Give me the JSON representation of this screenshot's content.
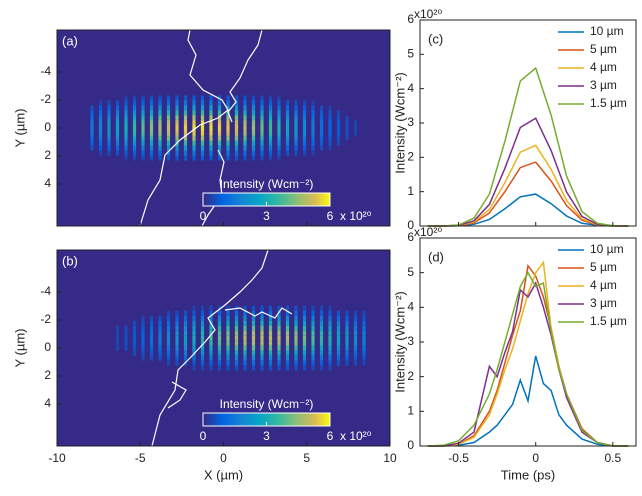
{
  "chart_data": [
    {
      "type": "heatmap",
      "panel_label": "(a)",
      "ylabel": "Y (µm)",
      "xlim": [
        -10,
        10
      ],
      "xticks": [
        -10,
        -5,
        0,
        5,
        10
      ],
      "show_xtick_labels": false,
      "ylim": [
        -7,
        7
      ],
      "y_reversed": true,
      "yticks": [
        -4,
        -2,
        0,
        2,
        4
      ],
      "colorbar": {
        "label": "Intensity (Wcm⁻²)",
        "lim": [
          0,
          6
        ],
        "ticks": [
          0,
          3,
          6
        ],
        "multiplier": "x 10²⁰"
      }
    },
    {
      "type": "heatmap",
      "panel_label": "(b)",
      "xlabel": "X (µm)",
      "ylabel": "Y (µm)",
      "xlim": [
        -10,
        10
      ],
      "xticks": [
        -10,
        -5,
        0,
        5,
        10
      ],
      "ylim": [
        -7,
        7
      ],
      "y_reversed": true,
      "yticks": [
        -4,
        -2,
        0,
        2,
        4
      ],
      "colorbar": {
        "label": "Intensity (Wcm⁻²)",
        "lim": [
          0,
          6
        ],
        "ticks": [
          0,
          3,
          6
        ],
        "multiplier": "x 10²⁰"
      }
    },
    {
      "type": "line",
      "panel_label": "(c)",
      "ylabel": "Intensity (Wcm⁻²)",
      "multiplier": "x10²⁰",
      "xlim": [
        -0.75,
        0.65
      ],
      "xticks": [
        -0.5,
        0,
        0.5
      ],
      "show_xtick_labels": false,
      "ylim": [
        0,
        6
      ],
      "yticks": [
        0,
        1,
        2,
        3,
        4,
        5,
        6
      ],
      "legend": "upper right",
      "x": [
        -0.7,
        -0.6,
        -0.5,
        -0.4,
        -0.3,
        -0.2,
        -0.1,
        0,
        0.1,
        0.2,
        0.3,
        0.4,
        0.5,
        0.6
      ],
      "series": [
        {
          "name": "10 µm",
          "color": "#0072bd",
          "values": [
            0,
            0,
            0.01,
            0.05,
            0.19,
            0.5,
            0.85,
            0.93,
            0.65,
            0.29,
            0.08,
            0.02,
            0,
            0
          ]
        },
        {
          "name": "5 µm",
          "color": "#d95319",
          "values": [
            0,
            0,
            0.01,
            0.09,
            0.38,
            1.0,
            1.7,
            1.86,
            1.31,
            0.59,
            0.17,
            0.03,
            0,
            0
          ]
        },
        {
          "name": "4 µm",
          "color": "#edb120",
          "values": [
            0,
            0,
            0.02,
            0.12,
            0.48,
            1.26,
            2.15,
            2.35,
            1.65,
            0.74,
            0.21,
            0.04,
            0,
            0
          ]
        },
        {
          "name": "3 µm",
          "color": "#7e2f8e",
          "values": [
            0,
            0,
            0.02,
            0.15,
            0.63,
            1.68,
            2.87,
            3.14,
            2.2,
            0.99,
            0.28,
            0.05,
            0.01,
            0
          ]
        },
        {
          "name": "1.5 µm",
          "color": "#77ac30",
          "values": [
            0,
            0,
            0.03,
            0.23,
            0.93,
            2.47,
            4.22,
            4.6,
            3.23,
            1.45,
            0.42,
            0.08,
            0.01,
            0
          ]
        }
      ]
    },
    {
      "type": "line",
      "panel_label": "(d)",
      "xlabel": "Time (ps)",
      "ylabel": "Intensity (Wcm⁻²)",
      "multiplier": "x10²⁰",
      "xlim": [
        -0.75,
        0.65
      ],
      "xticks": [
        -0.5,
        0,
        0.5
      ],
      "ylim": [
        0,
        6
      ],
      "yticks": [
        0,
        1,
        2,
        3,
        4,
        5,
        6
      ],
      "legend": "upper right",
      "x": [
        -0.7,
        -0.6,
        -0.5,
        -0.4,
        -0.3,
        -0.25,
        -0.2,
        -0.15,
        -0.1,
        -0.05,
        0,
        0.05,
        0.1,
        0.15,
        0.2,
        0.3,
        0.4,
        0.5,
        0.6
      ],
      "series": [
        {
          "name": "10 µm",
          "color": "#0072bd",
          "values": [
            0,
            0,
            0.02,
            0.1,
            0.4,
            0.6,
            0.9,
            1.2,
            1.9,
            1.3,
            2.6,
            1.8,
            1.6,
            0.9,
            0.6,
            0.2,
            0.05,
            0,
            0
          ]
        },
        {
          "name": "5 µm",
          "color": "#d95319",
          "values": [
            0,
            0,
            0.05,
            0.3,
            1.0,
            1.6,
            2.4,
            3.2,
            3.9,
            5.2,
            4.9,
            4.3,
            3.4,
            2.3,
            1.5,
            0.5,
            0.1,
            0,
            0
          ]
        },
        {
          "name": "4 µm",
          "color": "#edb120",
          "values": [
            0,
            0,
            0.05,
            0.25,
            0.9,
            1.5,
            2.2,
            2.8,
            3.6,
            4.4,
            5.0,
            5.3,
            3.4,
            2.3,
            1.4,
            0.4,
            0.1,
            0,
            0
          ]
        },
        {
          "name": "3 µm",
          "color": "#7e2f8e",
          "values": [
            0,
            0,
            0.08,
            0.4,
            2.3,
            2.0,
            2.7,
            3.3,
            4.5,
            4.3,
            4.7,
            4.0,
            3.2,
            2.2,
            1.4,
            0.4,
            0.1,
            0,
            0
          ]
        },
        {
          "name": "1.5 µm",
          "color": "#77ac30",
          "values": [
            0,
            0.02,
            0.15,
            0.6,
            1.5,
            2.2,
            3.0,
            3.8,
            4.6,
            5.0,
            4.6,
            4.7,
            3.3,
            2.2,
            1.5,
            0.45,
            0.1,
            0,
            0
          ]
        }
      ]
    }
  ]
}
